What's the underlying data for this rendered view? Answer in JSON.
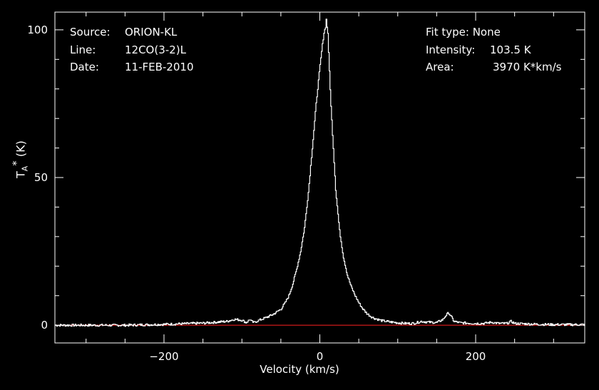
{
  "header_left": {
    "source_label": "Source:",
    "source_value": "ORION-KL",
    "line_label": "Line:",
    "line_value": "12CO(3-2)L",
    "date_label": "Date:",
    "date_value": "11-FEB-2010"
  },
  "header_right": {
    "fit_label": "Fit type:",
    "fit_value": "None",
    "intensity_label": "Intensity:",
    "intensity_value": "103.5 K",
    "area_label": "Area:",
    "area_value": "3970 K*km/s"
  },
  "chart_data": {
    "type": "line",
    "xlabel": "Velocity (km/s)",
    "ylabel_main": "T",
    "ylabel_sub": "A",
    "ylabel_sup": "*",
    "ylabel_unit": "(K)",
    "xlim": [
      -340,
      340
    ],
    "ylim": [
      -6,
      106
    ],
    "xticks": [
      -200,
      0,
      200
    ],
    "xtick_labels": [
      "−200",
      "0",
      "200"
    ],
    "yticks": [
      0,
      50,
      100
    ],
    "ytick_labels": [
      "0",
      "50",
      "100"
    ],
    "baseline": 0,
    "colors": {
      "spectrum": "#ffffff",
      "baseline": "#ff2020",
      "axes": "#ffffff"
    },
    "series": [
      {
        "x": [
          -340,
          -300,
          -250,
          -200,
          -150,
          -120,
          -110,
          -100,
          -95,
          -92,
          -90,
          -88,
          -85,
          -80,
          -70,
          -60,
          -50,
          -45,
          -40,
          -35,
          -30,
          -25,
          -20,
          -15,
          -10,
          -5,
          0,
          3,
          5,
          7,
          8,
          9,
          10,
          11,
          12,
          14,
          17,
          20,
          25,
          30,
          35,
          40,
          45,
          50,
          55,
          60,
          65,
          70,
          80,
          90,
          100,
          110,
          120,
          130,
          140,
          150,
          158,
          162,
          165,
          168,
          172,
          180,
          190,
          200,
          210,
          220,
          230,
          240,
          245,
          250,
          260,
          280,
          300,
          320,
          340
        ],
        "y": [
          0,
          0,
          0,
          0.3,
          0.7,
          1.3,
          2.0,
          1.7,
          0.9,
          1.5,
          2.0,
          1.3,
          0.9,
          1.5,
          2.5,
          3.7,
          5.5,
          7.5,
          10,
          14,
          19,
          25,
          33,
          45,
          60,
          75,
          88,
          95,
          99,
          101,
          103.5,
          101,
          99,
          92,
          86,
          74,
          60,
          46,
          32,
          23,
          17,
          13,
          10,
          7.5,
          5.5,
          4,
          3,
          2.3,
          1.5,
          1.1,
          0.8,
          0.6,
          0.6,
          1.3,
          1.0,
          0.9,
          2,
          3.5,
          4.2,
          3,
          1.3,
          0.8,
          0.7,
          0.6,
          0.6,
          1.0,
          0.6,
          0.6,
          1.3,
          0.6,
          0.5,
          0.3,
          0.2,
          0.2,
          0.2
        ]
      }
    ]
  }
}
